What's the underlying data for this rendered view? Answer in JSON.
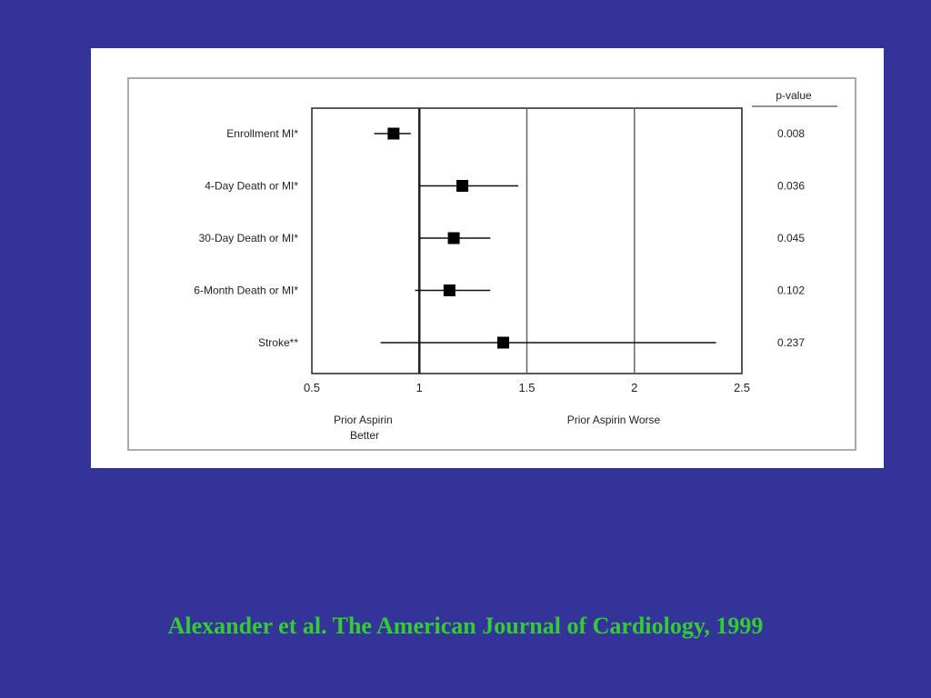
{
  "slide": {
    "background": "#333399",
    "citation": "Alexander et al. The American Journal of Cardiology, 1999",
    "citation_color": "#33cc33"
  },
  "chart_data": {
    "type": "forest",
    "pvalue_header": "p-value",
    "rows": [
      {
        "label": "Enrollment MI*",
        "estimate": 0.88,
        "lower": 0.79,
        "upper": 0.96,
        "pvalue": "0.008"
      },
      {
        "label": "4-Day Death or MI*",
        "estimate": 1.2,
        "lower": 1.0,
        "upper": 1.46,
        "pvalue": "0.036"
      },
      {
        "label": "30-Day Death or MI*",
        "estimate": 1.16,
        "lower": 1.0,
        "upper": 1.33,
        "pvalue": "0.045"
      },
      {
        "label": "6-Month Death or MI*",
        "estimate": 1.14,
        "lower": 0.98,
        "upper": 1.33,
        "pvalue": "0.102"
      },
      {
        "label": "Stroke**",
        "estimate": 1.39,
        "lower": 0.82,
        "upper": 2.38,
        "pvalue": "0.237"
      }
    ],
    "xlim": [
      0.5,
      2.5
    ],
    "xticks": [
      0.5,
      1,
      1.5,
      2,
      2.5
    ],
    "xtick_labels": [
      "0.5",
      "1",
      "1.5",
      "2",
      "2.5"
    ],
    "reference_line": 1,
    "vertical_lines": [
      1,
      1.5,
      2
    ],
    "xlabel_left": [
      "Prior Aspirin",
      "Better"
    ],
    "xlabel_right": "Prior Aspirin Worse"
  }
}
